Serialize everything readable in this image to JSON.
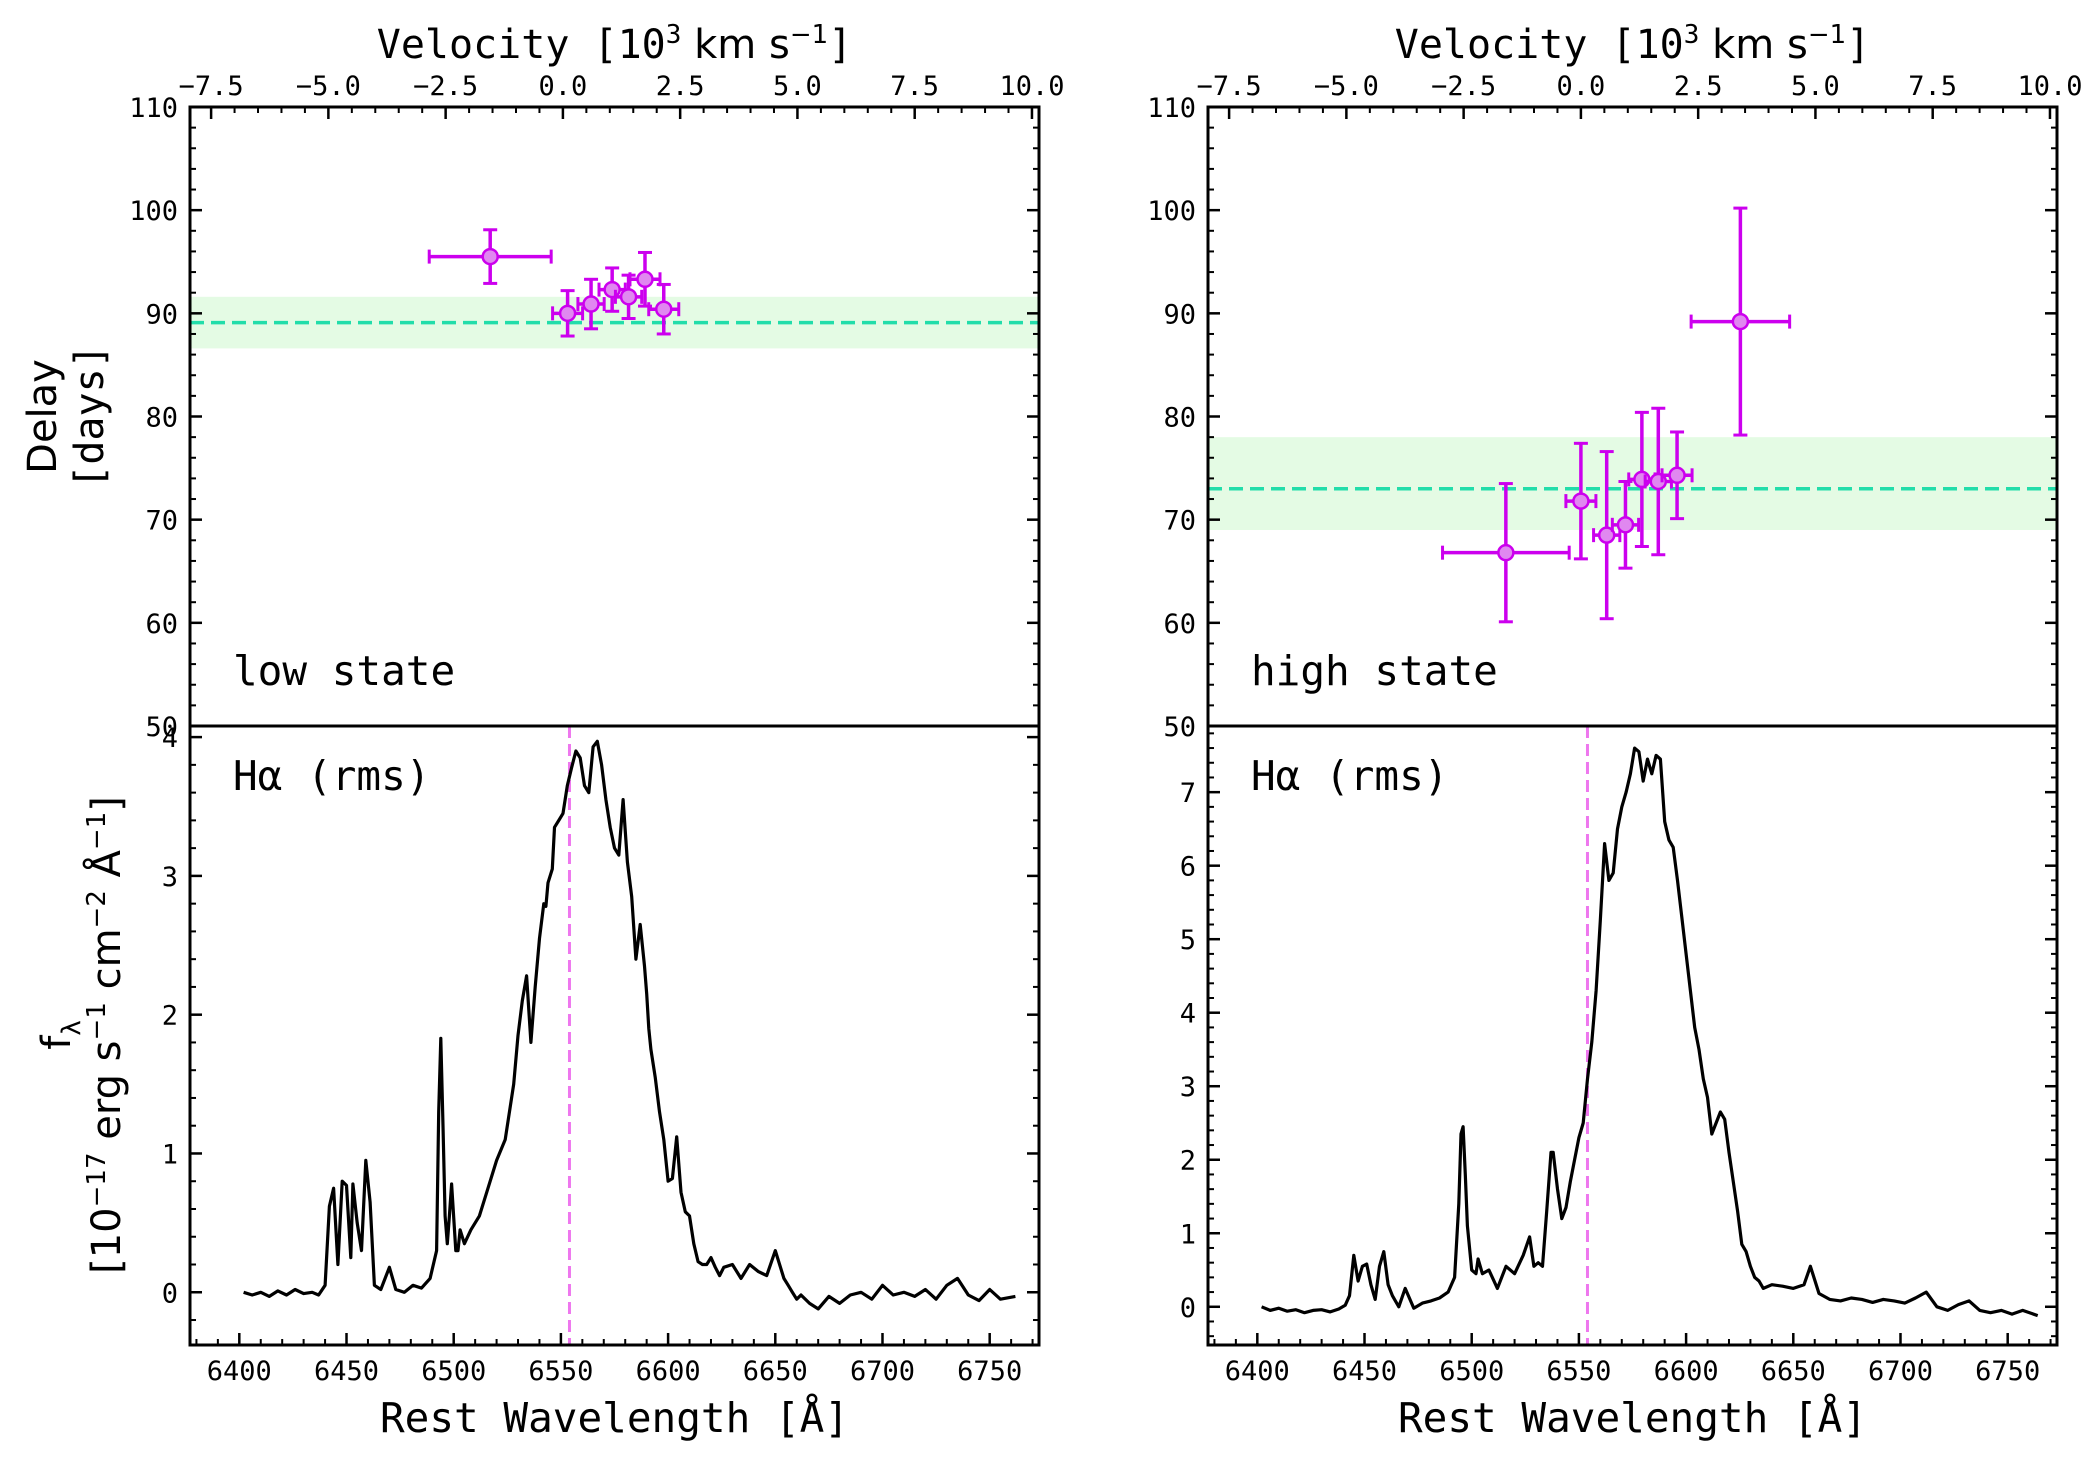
{
  "colors": {
    "points": "#cc00ee",
    "point_fill": "#e088f0",
    "mean_line": "#22ddaa",
    "band": "#e4fbe4",
    "spectrum": "#000000",
    "marker": "#ee77ee"
  },
  "delay_ylabel": [
    "Delay",
    "[days]"
  ],
  "flux_ylabel": [
    "f",
    "λ",
    "[10",
    "−17",
    " erg s",
    "−1",
    " cm",
    "−2",
    " Å",
    "−1",
    "]"
  ],
  "chart_data": [
    {
      "type": "scatter",
      "panel": "low-delay",
      "annotation": "low state",
      "top_xlabel": {
        "prefix": "Velocity [10",
        "sup1": "3",
        "mid": " km s",
        "sup2": "−1",
        "suffix": "]"
      },
      "top_xlim": [
        -7.95,
        10.15
      ],
      "top_xticks": [
        "−7.5",
        "−5.0",
        "−2.5",
        "0.0",
        "2.5",
        "5.0",
        "7.5",
        "10.0"
      ],
      "top_xtick_values": [
        -7.5,
        -5.0,
        -2.5,
        0.0,
        2.5,
        5.0,
        7.5,
        10.0
      ],
      "ylim": [
        50,
        110
      ],
      "yticks": [
        50,
        60,
        70,
        80,
        90,
        100,
        110
      ],
      "mean_delay": 89.1,
      "band": [
        86.6,
        91.6
      ],
      "points": [
        {
          "x": -1.55,
          "xerr": 1.3,
          "y": 95.5,
          "yerr": 2.6
        },
        {
          "x": 0.1,
          "xerr": 0.32,
          "y": 90.0,
          "yerr": 2.2
        },
        {
          "x": 0.6,
          "xerr": 0.28,
          "y": 90.9,
          "yerr": 2.4
        },
        {
          "x": 1.05,
          "xerr": 0.28,
          "y": 92.3,
          "yerr": 2.1
        },
        {
          "x": 1.4,
          "xerr": 0.28,
          "y": 91.6,
          "yerr": 2.1
        },
        {
          "x": 1.75,
          "xerr": 0.32,
          "y": 93.3,
          "yerr": 2.6
        },
        {
          "x": 2.15,
          "xerr": 0.32,
          "y": 90.4,
          "yerr": 2.4
        }
      ]
    },
    {
      "type": "scatter",
      "panel": "high-delay",
      "annotation": "high state",
      "top_xlabel": {
        "prefix": "Velocity [10",
        "sup1": "3",
        "mid": " km s",
        "sup2": "−1",
        "suffix": "]"
      },
      "top_xlim": [
        -7.95,
        10.15
      ],
      "top_xticks": [
        "−7.5",
        "−5.0",
        "−2.5",
        "0.0",
        "2.5",
        "5.0",
        "7.5",
        "10.0"
      ],
      "top_xtick_values": [
        -7.5,
        -5.0,
        -2.5,
        0.0,
        2.5,
        5.0,
        7.5,
        10.0
      ],
      "ylim": [
        50,
        110
      ],
      "yticks": [
        50,
        60,
        70,
        80,
        90,
        100,
        110
      ],
      "mean_delay": 73.0,
      "band": [
        69.0,
        78.0
      ],
      "points": [
        {
          "x": -1.6,
          "xerr": 1.35,
          "y": 66.8,
          "yerr": 6.7
        },
        {
          "x": 0.0,
          "xerr": 0.32,
          "y": 71.8,
          "yerr": 5.6
        },
        {
          "x": 0.55,
          "xerr": 0.28,
          "y": 68.5,
          "yerr": 8.1
        },
        {
          "x": 0.95,
          "xerr": 0.28,
          "y": 69.5,
          "yerr": 4.2
        },
        {
          "x": 1.3,
          "xerr": 0.28,
          "y": 73.9,
          "yerr": 6.5
        },
        {
          "x": 1.65,
          "xerr": 0.28,
          "y": 73.7,
          "yerr": 7.1
        },
        {
          "x": 2.05,
          "xerr": 0.32,
          "y": 74.3,
          "yerr": 4.2
        },
        {
          "x": 3.4,
          "xerr": 1.05,
          "y": 89.2,
          "yerr": 11.0
        }
      ]
    },
    {
      "type": "line",
      "panel": "low-spectrum",
      "annotation": "Hα (rms)",
      "xlabel": "Rest Wavelength [Å]",
      "xlim": [
        6377,
        6773
      ],
      "xticks": [
        6400,
        6450,
        6500,
        6550,
        6600,
        6650,
        6700,
        6750
      ],
      "ylim": [
        -0.38,
        4.08
      ],
      "yticks": [
        0,
        1,
        2,
        3,
        4
      ],
      "marker_wavelength": 6554,
      "x": [
        6402,
        6406,
        6410,
        6414,
        6418,
        6422,
        6426,
        6430,
        6434,
        6437,
        6440,
        6442,
        6444,
        6446,
        6448,
        6450,
        6452,
        6453,
        6455,
        6457,
        6459,
        6461,
        6463,
        6466,
        6470,
        6473,
        6477,
        6481,
        6485,
        6489,
        6492,
        6493,
        6494,
        6495,
        6496,
        6497,
        6498,
        6499,
        6501,
        6502,
        6503,
        6505,
        6508,
        6512,
        6516,
        6520,
        6524,
        6528,
        6530,
        6532,
        6534,
        6536,
        6538,
        6540,
        6542,
        6543,
        6544,
        6546,
        6547,
        6549,
        6551,
        6553,
        6555,
        6557,
        6559,
        6561,
        6563,
        6565,
        6567,
        6569,
        6571,
        6573,
        6575,
        6577,
        6579,
        6581,
        6583,
        6585,
        6587,
        6589,
        6590,
        6591,
        6592,
        6594,
        6596,
        6598,
        6600,
        6602,
        6604,
        6606,
        6608,
        6610,
        6612,
        6614,
        6616,
        6618,
        6620,
        6622,
        6624,
        6626,
        6630,
        6634,
        6638,
        6642,
        6646,
        6650,
        6654,
        6656,
        6658,
        6660,
        6662,
        6666,
        6670,
        6675,
        6680,
        6685,
        6690,
        6695,
        6700,
        6705,
        6710,
        6715,
        6720,
        6725,
        6730,
        6735,
        6740,
        6745,
        6750,
        6755,
        6762
      ],
      "y": [
        0.0,
        -0.02,
        0.0,
        -0.03,
        0.01,
        -0.02,
        0.02,
        -0.01,
        0.0,
        -0.02,
        0.05,
        0.62,
        0.75,
        0.2,
        0.8,
        0.77,
        0.25,
        0.78,
        0.5,
        0.3,
        0.95,
        0.65,
        0.05,
        0.02,
        0.18,
        0.02,
        0.0,
        0.05,
        0.03,
        0.1,
        0.3,
        1.3,
        1.83,
        1.2,
        0.55,
        0.35,
        0.55,
        0.78,
        0.3,
        0.3,
        0.45,
        0.35,
        0.45,
        0.55,
        0.75,
        0.95,
        1.1,
        1.5,
        1.85,
        2.1,
        2.28,
        1.8,
        2.2,
        2.55,
        2.8,
        2.78,
        2.95,
        3.05,
        3.35,
        3.4,
        3.45,
        3.65,
        3.78,
        3.9,
        3.85,
        3.65,
        3.6,
        3.93,
        3.97,
        3.8,
        3.55,
        3.35,
        3.2,
        3.15,
        3.55,
        3.1,
        2.85,
        2.4,
        2.65,
        2.35,
        2.15,
        1.9,
        1.75,
        1.55,
        1.3,
        1.1,
        0.8,
        0.82,
        1.12,
        0.72,
        0.58,
        0.55,
        0.35,
        0.22,
        0.2,
        0.2,
        0.25,
        0.18,
        0.12,
        0.18,
        0.2,
        0.1,
        0.2,
        0.15,
        0.12,
        0.3,
        0.1,
        0.05,
        0.0,
        -0.05,
        -0.02,
        -0.08,
        -0.12,
        -0.03,
        -0.08,
        -0.02,
        0.0,
        -0.05,
        0.05,
        -0.02,
        0.0,
        -0.03,
        0.02,
        -0.05,
        0.05,
        0.1,
        -0.02,
        -0.06,
        0.02,
        -0.05,
        -0.03
      ]
    },
    {
      "type": "line",
      "panel": "high-spectrum",
      "annotation": "Hα (rms)",
      "xlabel": "Rest Wavelength [Å]",
      "xlim": [
        6377,
        6773
      ],
      "xticks": [
        6400,
        6450,
        6500,
        6550,
        6600,
        6650,
        6700,
        6750
      ],
      "ylim": [
        -0.52,
        7.9
      ],
      "yticks": [
        0,
        1,
        2,
        3,
        4,
        5,
        6,
        7
      ],
      "marker_wavelength": 6554,
      "x": [
        6402,
        6406,
        6410,
        6414,
        6418,
        6422,
        6426,
        6430,
        6434,
        6438,
        6441,
        6443,
        6445,
        6447,
        6449,
        6451,
        6453,
        6455,
        6457,
        6459,
        6461,
        6463,
        6466,
        6469,
        6473,
        6477,
        6481,
        6485,
        6489,
        6492,
        6494,
        6495,
        6496,
        6497,
        6498,
        6500,
        6502,
        6503,
        6505,
        6508,
        6512,
        6516,
        6520,
        6524,
        6527,
        6529,
        6531,
        6533,
        6535,
        6537,
        6538,
        6540,
        6542,
        6544,
        6546,
        6548,
        6550,
        6552,
        6554,
        6556,
        6558,
        6560,
        6562,
        6564,
        6566,
        6568,
        6570,
        6572,
        6574,
        6576,
        6578,
        6580,
        6582,
        6584,
        6586,
        6588,
        6590,
        6592,
        6594,
        6596,
        6598,
        6600,
        6602,
        6604,
        6606,
        6608,
        6610,
        6612,
        6614,
        6616,
        6618,
        6620,
        6622,
        6624,
        6626,
        6628,
        6630,
        6632,
        6634,
        6636,
        6640,
        6645,
        6650,
        6655,
        6658,
        6662,
        6667,
        6672,
        6677,
        6682,
        6687,
        6692,
        6697,
        6702,
        6707,
        6712,
        6717,
        6722,
        6727,
        6732,
        6737,
        6742,
        6747,
        6752,
        6757,
        6764
      ],
      "y": [
        0.0,
        -0.05,
        -0.02,
        -0.06,
        -0.04,
        -0.08,
        -0.05,
        -0.04,
        -0.07,
        -0.03,
        0.02,
        0.15,
        0.7,
        0.35,
        0.55,
        0.58,
        0.3,
        0.1,
        0.55,
        0.75,
        0.3,
        0.15,
        0.0,
        0.25,
        -0.02,
        0.05,
        0.08,
        0.12,
        0.2,
        0.4,
        1.4,
        2.35,
        2.45,
        1.8,
        1.1,
        0.5,
        0.45,
        0.65,
        0.45,
        0.5,
        0.25,
        0.55,
        0.45,
        0.7,
        0.95,
        0.55,
        0.6,
        0.55,
        1.3,
        2.1,
        2.1,
        1.6,
        1.2,
        1.35,
        1.7,
        2.0,
        2.3,
        2.5,
        3.1,
        3.6,
        4.3,
        5.25,
        6.3,
        5.8,
        5.9,
        6.5,
        6.8,
        7.0,
        7.25,
        7.6,
        7.55,
        7.15,
        7.45,
        7.25,
        7.5,
        7.45,
        6.6,
        6.35,
        6.25,
        5.8,
        5.3,
        4.8,
        4.3,
        3.8,
        3.5,
        3.1,
        2.85,
        2.35,
        2.5,
        2.65,
        2.55,
        2.1,
        1.7,
        1.3,
        0.85,
        0.75,
        0.55,
        0.4,
        0.35,
        0.25,
        0.3,
        0.28,
        0.25,
        0.3,
        0.55,
        0.18,
        0.1,
        0.08,
        0.12,
        0.1,
        0.06,
        0.1,
        0.08,
        0.05,
        0.12,
        0.2,
        0.0,
        -0.05,
        0.03,
        0.08,
        -0.05,
        -0.08,
        -0.05,
        -0.1,
        -0.05,
        -0.12
      ]
    }
  ]
}
